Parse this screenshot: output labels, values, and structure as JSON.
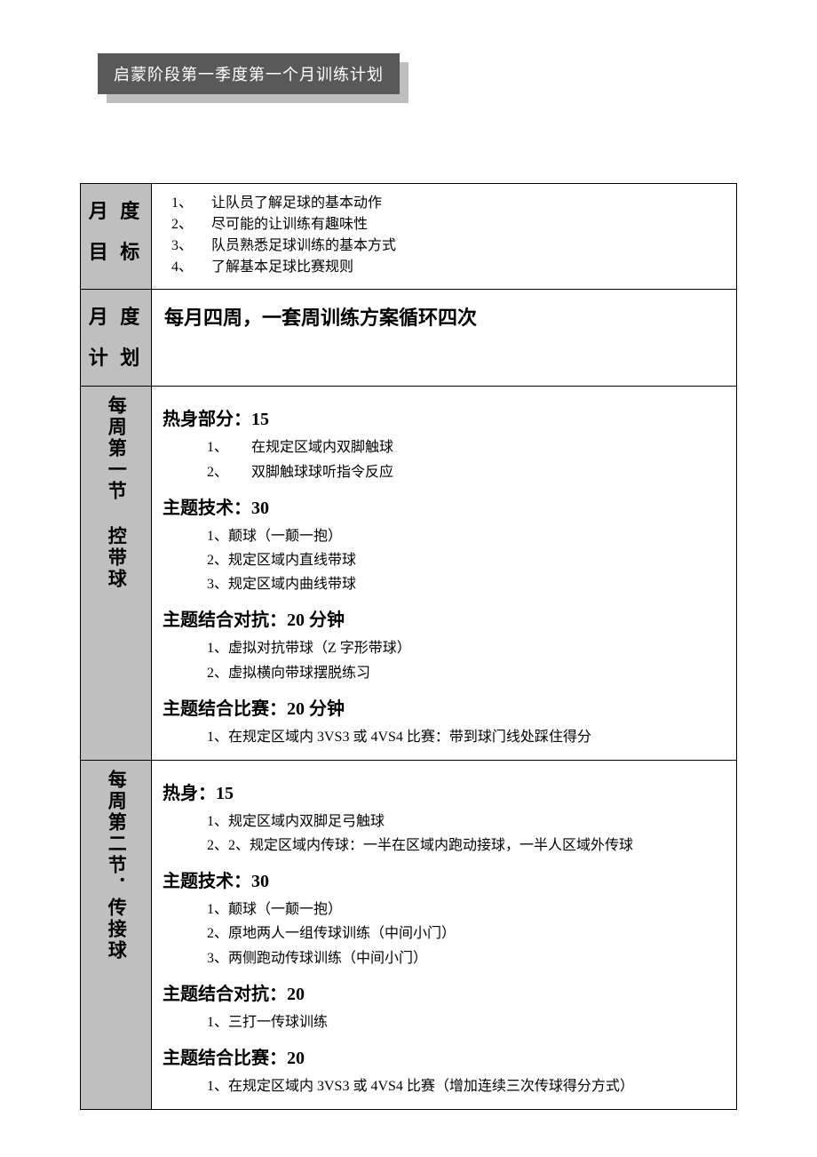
{
  "title": "启蒙阶段第一季度第一个月训练计划",
  "rows": {
    "goals": {
      "label": "月 度\n目 标",
      "items": [
        {
          "num": "1、",
          "text": "让队员了解足球的基本动作"
        },
        {
          "num": "2、",
          "text": "尽可能的让训练有趣味性"
        },
        {
          "num": "3、",
          "text": "队员熟悉足球训练的基本方式"
        },
        {
          "num": "4、",
          "text": "了解基本足球比赛规则"
        }
      ]
    },
    "plan": {
      "label": "月 度\n计 划",
      "text": "每月四周，一套周训练方案循环四次"
    },
    "session1": {
      "label": "每周第一节 控带球",
      "sections": [
        {
          "heading": "热身部分：15",
          "style": "warmup",
          "items": [
            {
              "num": "1、",
              "text": "在规定区域内双脚触球"
            },
            {
              "num": "2、",
              "text": "双脚触球球听指令反应"
            }
          ]
        },
        {
          "heading": "主题技术：30",
          "style": "normal",
          "items": [
            {
              "text": "1、颠球（一颠一抱）"
            },
            {
              "text": "2、规定区域内直线带球"
            },
            {
              "text": "3、规定区域内曲线带球"
            }
          ]
        },
        {
          "heading": "主题结合对抗：20 分钟",
          "style": "normal",
          "items": [
            {
              "text": "1、虚拟对抗带球（Z 字形带球）"
            },
            {
              "text": "2、虚拟横向带球摆脱练习"
            }
          ]
        },
        {
          "heading": "主题结合比赛：20 分钟",
          "style": "normal",
          "items": [
            {
              "text": "1、在规定区域内 3VS3 或 4VS4 比赛：带到球门线处踩住得分"
            }
          ]
        }
      ]
    },
    "session2": {
      "label": "每周第二节．传接球",
      "sections": [
        {
          "heading": "热身：15",
          "style": "normal",
          "items": [
            {
              "text": "1、规定区域内双脚足弓触球"
            },
            {
              "text": "2、2、规定区域内传球：一半在区域内跑动接球，一半人区域外传球"
            }
          ]
        },
        {
          "heading": "主题技术：30",
          "style": "normal",
          "items": [
            {
              "text": "1、颠球（一颠一抱）"
            },
            {
              "text": "2、原地两人一组传球训练（中间小门）"
            },
            {
              "text": "3、两侧跑动传球训练（中间小门）"
            }
          ]
        },
        {
          "heading": "主题结合对抗：20",
          "style": "normal",
          "items": [
            {
              "text": "1、三打一传球训练"
            }
          ]
        },
        {
          "heading": "主题结合比赛：20",
          "style": "normal",
          "items": [
            {
              "text": "1、在规定区域内 3VS3 或 4VS4 比赛（增加连续三次传球得分方式）"
            }
          ]
        }
      ]
    }
  },
  "colors": {
    "banner_bg": "#595959",
    "banner_shadow": "#bfbfbf",
    "label_bg": "#bfbfbf",
    "text": "#000000",
    "page_bg": "#ffffff"
  }
}
